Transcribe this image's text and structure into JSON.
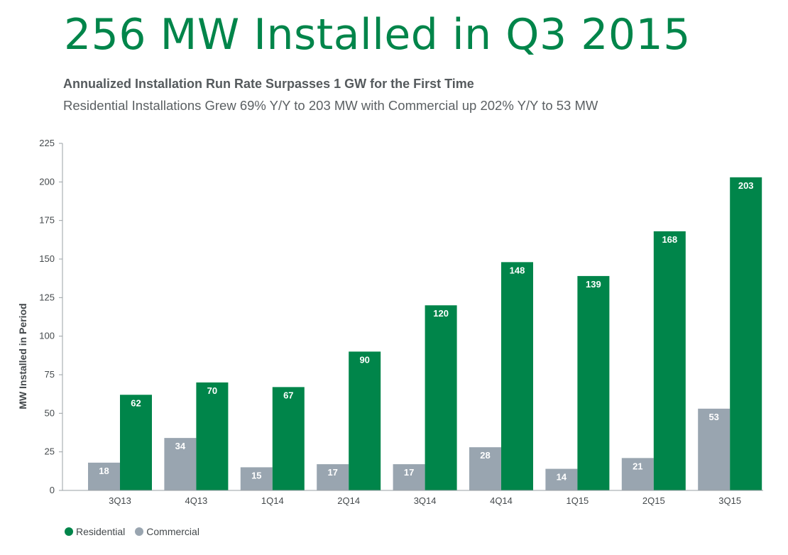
{
  "header": {
    "title": "256 MW Installed in Q3 2015",
    "subtitle": "Annualized Installation Run Rate Surpasses 1 GW for the First Time",
    "subtitle2": "Residential Installations Grew 69% Y/Y to 203 MW with Commercial up 202% Y/Y to 53 MW"
  },
  "colors": {
    "residential": "#00854a",
    "commercial": "#99a5b0",
    "title": "#00854a"
  },
  "chart_data": {
    "type": "bar",
    "title": "256 MW Installed in Q3 2015",
    "ylabel": "MW Installed in Period",
    "xlabel": "",
    "categories": [
      "3Q13",
      "4Q13",
      "1Q14",
      "2Q14",
      "3Q14",
      "4Q14",
      "1Q15",
      "2Q15",
      "3Q15"
    ],
    "series": [
      {
        "name": "Commercial",
        "values": [
          18,
          34,
          15,
          17,
          17,
          28,
          14,
          21,
          53
        ]
      },
      {
        "name": "Residential",
        "values": [
          62,
          70,
          67,
          90,
          120,
          148,
          139,
          168,
          203
        ]
      }
    ],
    "ylim": [
      0,
      225
    ],
    "yticks": [
      "0",
      "25",
      "50",
      "75",
      "100",
      "125",
      "150",
      "175",
      "200",
      "225"
    ],
    "grid": false,
    "legend_position": "bottom-left"
  },
  "legend": {
    "items": [
      {
        "label": "Residential",
        "color": "#00854a"
      },
      {
        "label": "Commercial",
        "color": "#99a5b0"
      }
    ]
  }
}
